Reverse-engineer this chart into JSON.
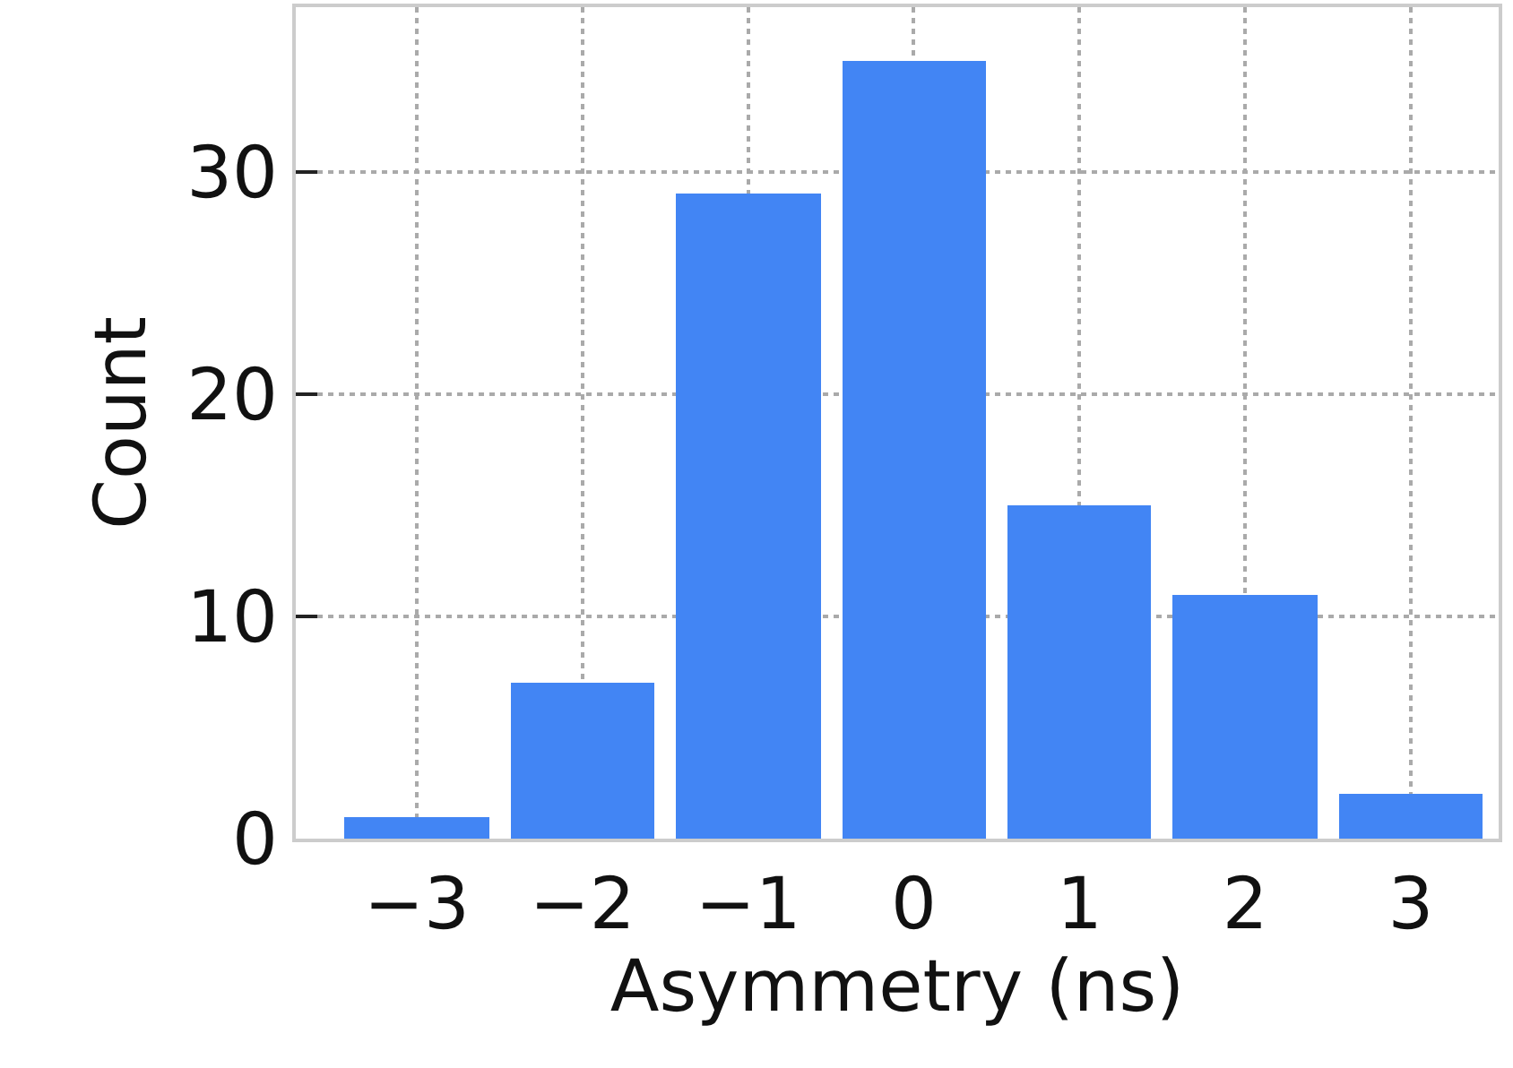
{
  "chart_data": {
    "type": "bar",
    "xlabel": "Asymmetry (ns)",
    "ylabel": "Count",
    "x": [
      -3,
      -2,
      -1,
      0,
      1,
      2,
      3
    ],
    "series": [
      {
        "color": "#4285f4",
        "values": [
          1,
          7,
          29,
          35,
          15,
          11,
          2
        ]
      }
    ],
    "xlim": [
      -3.73,
      3.53
    ],
    "xticks": [
      {
        "value": -3,
        "label": "−3"
      },
      {
        "value": -2,
        "label": "−2"
      },
      {
        "value": -1,
        "label": "−1"
      },
      0,
      1,
      2,
      3
    ],
    "ylim": [
      0,
      37.4
    ],
    "yticks": [
      0,
      10,
      20,
      30
    ],
    "grid": true
  }
}
